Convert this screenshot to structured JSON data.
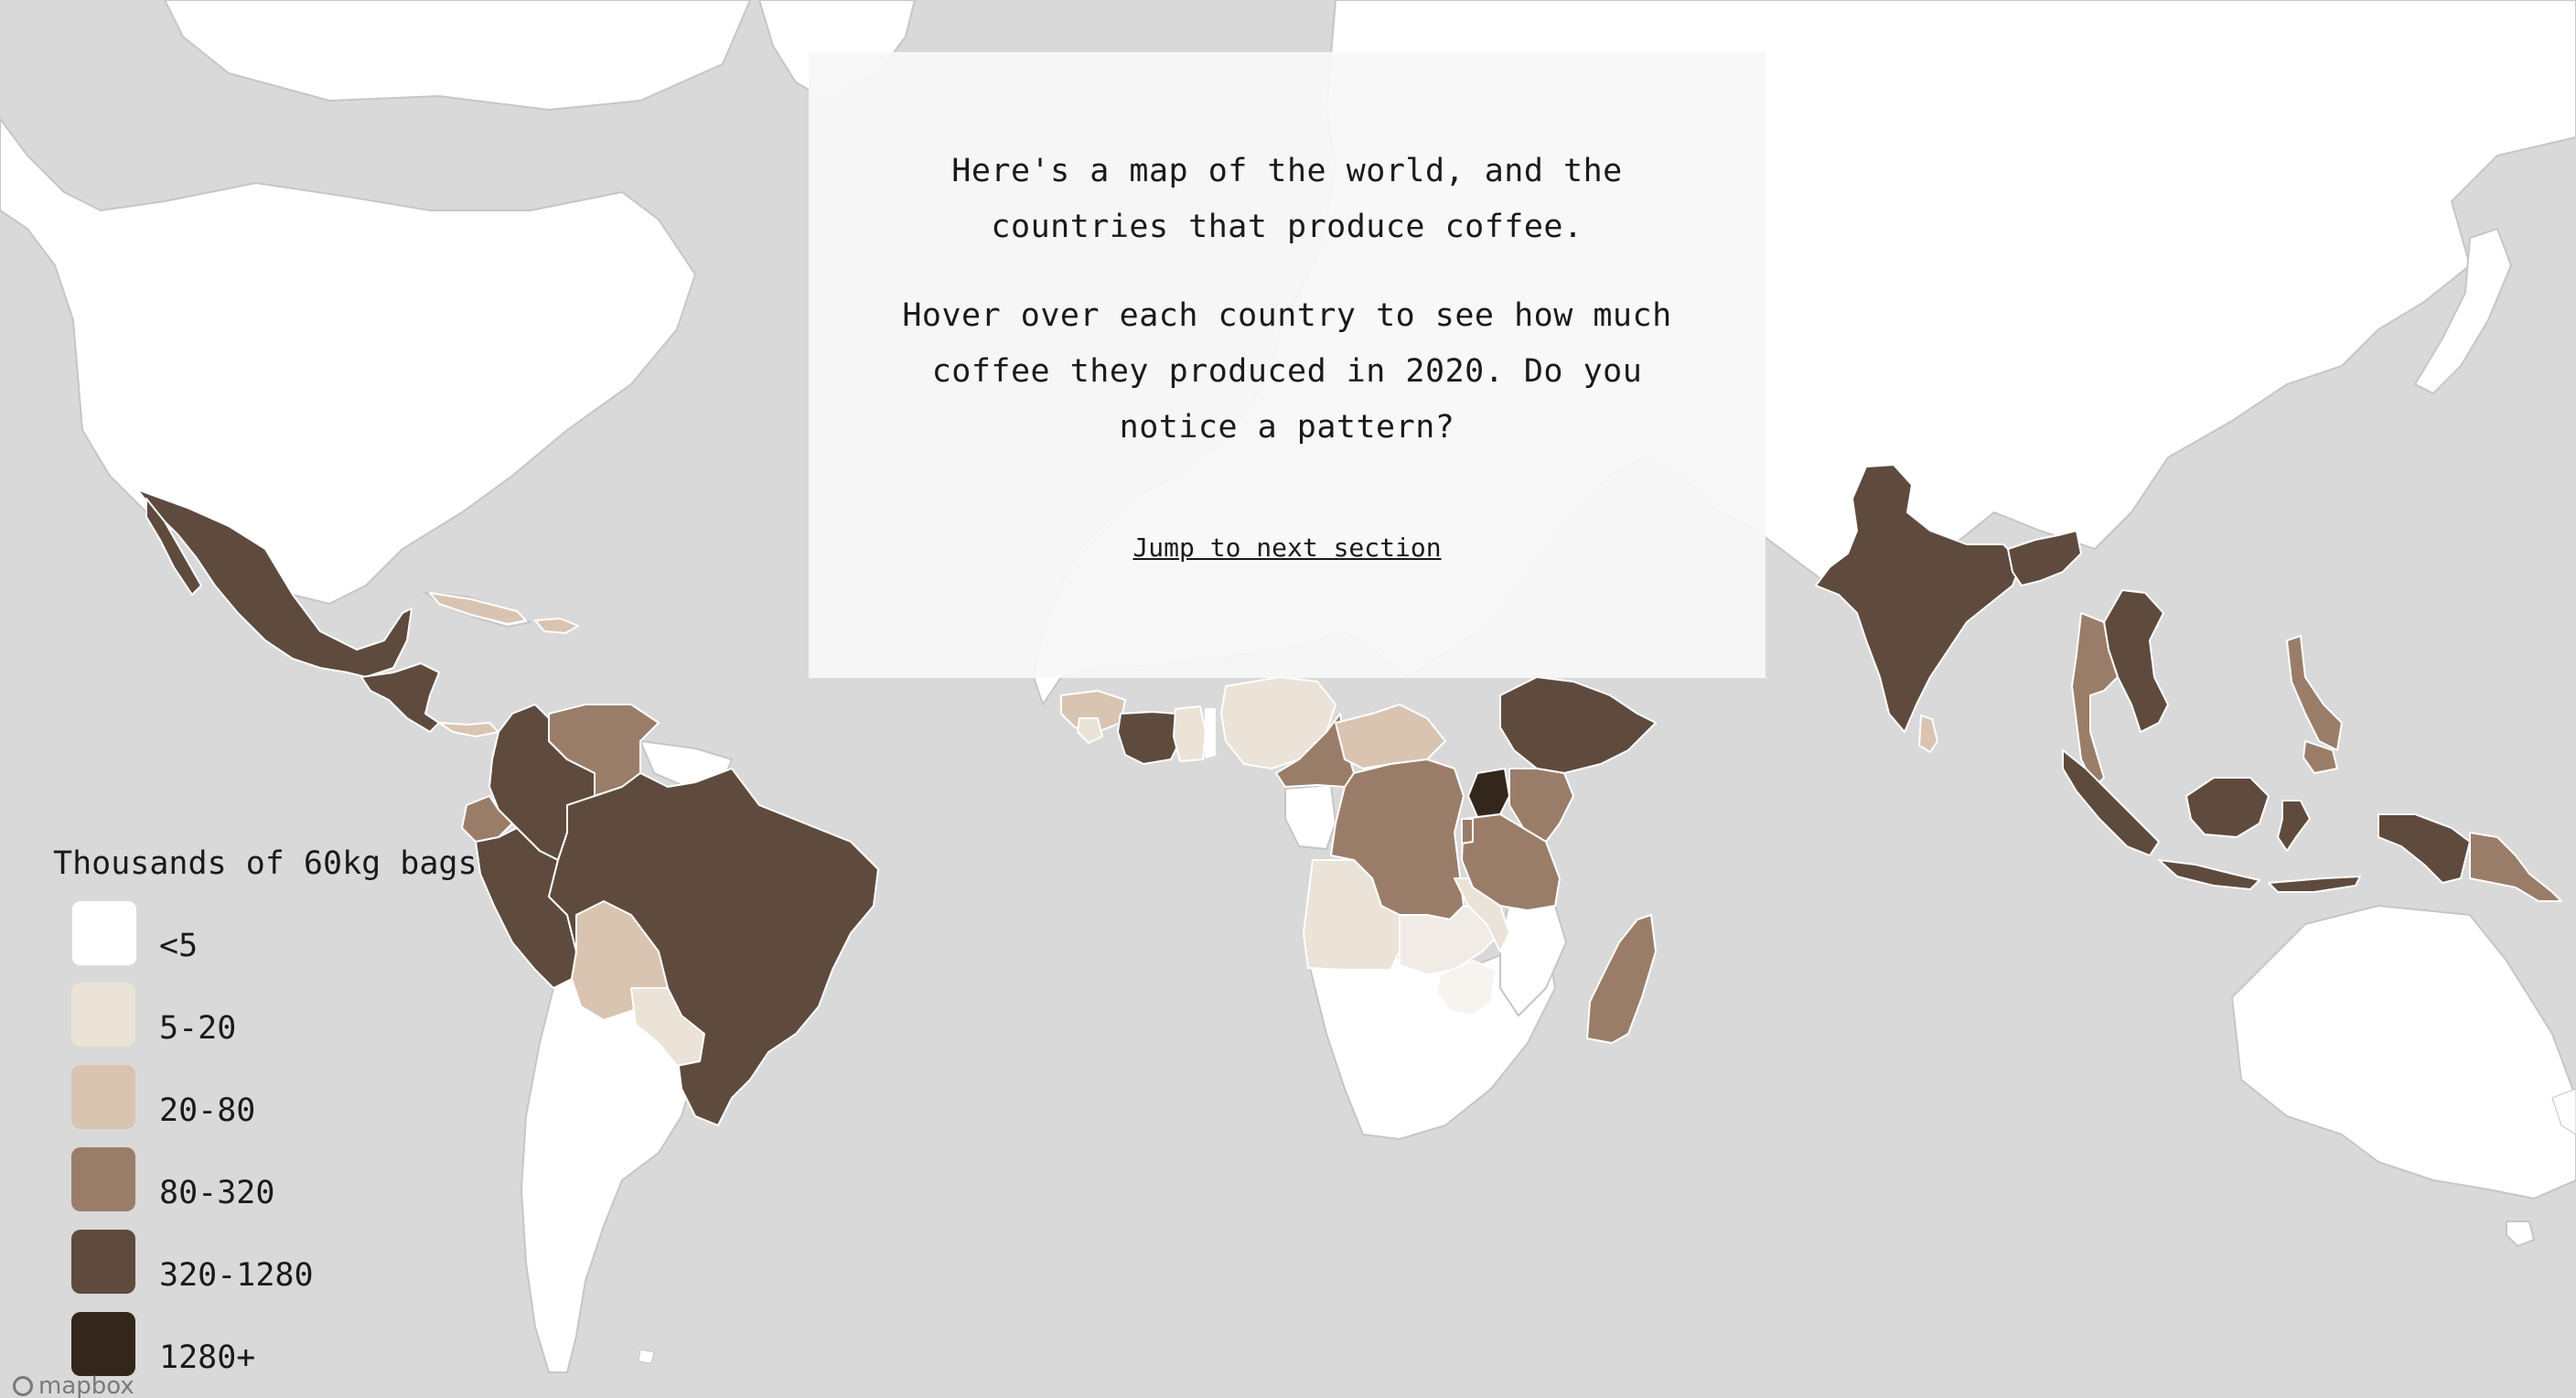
{
  "intro": {
    "line1": "Here's a map of the world, and the countries that produce coffee.",
    "line2": "Hover over each country to see how much coffee they produced in 2020. Do you notice a pattern?",
    "jump_link": "Jump to next section"
  },
  "legend": {
    "title": "Thousands of 60kg bags",
    "items": [
      {
        "label": "<5",
        "color": "#ffffff"
      },
      {
        "label": "5-20",
        "color": "#ebe2d8"
      },
      {
        "label": "20-80",
        "color": "#d9c4b1"
      },
      {
        "label": "80-320",
        "color": "#9a7d69"
      },
      {
        "label": "320-1280",
        "color": "#5e4b3e"
      },
      {
        "label": "1280+",
        "color": "#33261a"
      }
    ]
  },
  "attribution": {
    "text": "mapbox",
    "icon": "mapbox-logo-icon"
  },
  "colors": {
    "ocean": "#d9d9d9",
    "land_no_data": "#ffffff",
    "border": "#c6c6c6"
  },
  "regions": [
    {
      "name": "North America",
      "class": "<5"
    },
    {
      "name": "Mexico",
      "class": "320-1280"
    },
    {
      "name": "Central America",
      "class": "320-1280"
    },
    {
      "name": "Caribbean",
      "class": "20-80"
    },
    {
      "name": "Colombia",
      "class": "320-1280"
    },
    {
      "name": "Venezuela",
      "class": "80-320"
    },
    {
      "name": "Ecuador",
      "class": "80-320"
    },
    {
      "name": "Peru",
      "class": "320-1280"
    },
    {
      "name": "Brazil",
      "class": "320-1280"
    },
    {
      "name": "Bolivia",
      "class": "20-80"
    },
    {
      "name": "Paraguay",
      "class": "5-20"
    },
    {
      "name": "Guinea",
      "class": "20-80"
    },
    {
      "name": "Côte d'Ivoire",
      "class": "320-1280"
    },
    {
      "name": "Nigeria",
      "class": "5-20"
    },
    {
      "name": "Cameroon",
      "class": "80-320"
    },
    {
      "name": "Central African Republic",
      "class": "20-80"
    },
    {
      "name": "DR Congo",
      "class": "80-320"
    },
    {
      "name": "Angola",
      "class": "5-20"
    },
    {
      "name": "Ethiopia",
      "class": "320-1280"
    },
    {
      "name": "Uganda",
      "class": "1280+"
    },
    {
      "name": "Kenya",
      "class": "80-320"
    },
    {
      "name": "Tanzania",
      "class": "80-320"
    },
    {
      "name": "Zambia",
      "class": "5-20"
    },
    {
      "name": "Malawi",
      "class": "5-20"
    },
    {
      "name": "Madagascar",
      "class": "80-320"
    },
    {
      "name": "India",
      "class": "320-1280"
    },
    {
      "name": "Sri Lanka",
      "class": "20-80"
    },
    {
      "name": "Laos",
      "class": "320-1280"
    },
    {
      "name": "Thailand",
      "class": "80-320"
    },
    {
      "name": "Vietnam",
      "class": "320-1280"
    },
    {
      "name": "Philippines",
      "class": "80-320"
    },
    {
      "name": "Indonesia",
      "class": "320-1280"
    },
    {
      "name": "Papua New Guinea",
      "class": "80-320"
    }
  ]
}
